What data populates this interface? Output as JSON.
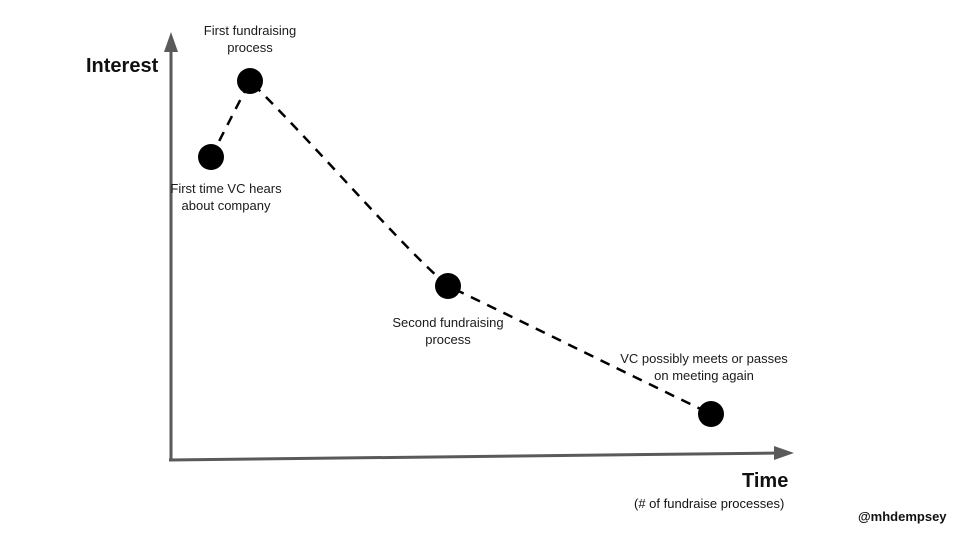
{
  "y_axis_title": "Interest",
  "x_axis_title": "Time",
  "x_axis_subtitle": "(# of fundraise processes)",
  "credit": "@mhdempsey",
  "points": [
    {
      "label_lines": [
        "First time VC hears",
        "about company"
      ]
    },
    {
      "label_lines": [
        "First fundraising",
        "process"
      ]
    },
    {
      "label_lines": [
        "Second fundraising",
        "process"
      ]
    },
    {
      "label_lines": [
        "VC possibly meets or passes",
        "on meeting again"
      ]
    }
  ],
  "colors": {
    "axis": "#5a5a5a",
    "point": "#000000",
    "curve": "#000000"
  }
}
